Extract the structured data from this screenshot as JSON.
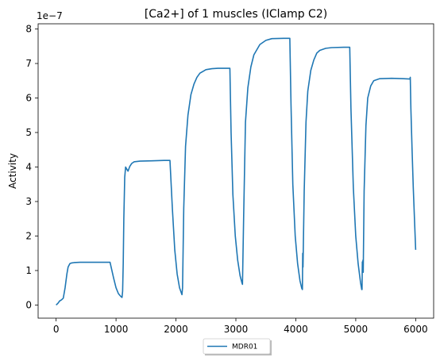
{
  "chart_data": {
    "type": "line",
    "title": "[Ca2+] of 1 muscles (IClamp C2)",
    "xlabel": "",
    "ylabel": "Activity",
    "offset_text": "1e−7",
    "xlim": [
      -300,
      6300
    ],
    "ylim": [
      -0.38,
      8.15
    ],
    "xticks": [
      0,
      1000,
      2000,
      3000,
      4000,
      5000,
      6000
    ],
    "xtick_labels": [
      "0",
      "1000",
      "2000",
      "3000",
      "4000",
      "5000",
      "6000"
    ],
    "yticks": [
      0,
      1,
      2,
      3,
      4,
      5,
      6,
      7,
      8
    ],
    "ytick_labels": [
      "0",
      "1",
      "2",
      "3",
      "4",
      "5",
      "6",
      "7",
      "8"
    ],
    "grid": false,
    "legend_position": "below-center",
    "series": [
      {
        "name": "MDR01",
        "color": "#1f77b4",
        "x": [
          0,
          30,
          60,
          90,
          120,
          150,
          180,
          200,
          230,
          260,
          300,
          400,
          600,
          800,
          900,
          960,
          1000,
          1040,
          1080,
          1100,
          1110,
          1120,
          1130,
          1145,
          1160,
          1175,
          1200,
          1230,
          1260,
          1300,
          1400,
          1600,
          1800,
          1900,
          1940,
          1980,
          2020,
          2060,
          2090,
          2100,
          2110,
          2130,
          2160,
          2200,
          2250,
          2300,
          2350,
          2400,
          2500,
          2600,
          2700,
          2900,
          2920,
          2950,
          2990,
          3030,
          3070,
          3100,
          3110,
          3130,
          3160,
          3200,
          3250,
          3300,
          3400,
          3500,
          3600,
          3800,
          3900,
          3920,
          3950,
          3990,
          4030,
          4070,
          4100,
          4110,
          4115,
          4120,
          4140,
          4170,
          4200,
          4250,
          4300,
          4350,
          4400,
          4500,
          4600,
          4800,
          4900,
          4920,
          4960,
          5000,
          5040,
          5080,
          5100,
          5105,
          5110,
          5115,
          5120,
          5125,
          5140,
          5170,
          5200,
          5250,
          5300,
          5400,
          5600,
          5800,
          5900,
          5905,
          5910,
          5920,
          5940,
          5960,
          5980,
          6000
        ],
        "values": [
          0,
          0.05,
          0.12,
          0.15,
          0.2,
          0.5,
          0.9,
          1.1,
          1.2,
          1.22,
          1.23,
          1.24,
          1.24,
          1.24,
          1.24,
          0.78,
          0.5,
          0.33,
          0.25,
          0.22,
          0.4,
          1.2,
          2.5,
          3.7,
          4.0,
          3.95,
          3.88,
          4.02,
          4.1,
          4.15,
          4.17,
          4.18,
          4.19,
          4.19,
          2.8,
          1.6,
          0.9,
          0.5,
          0.35,
          0.3,
          0.5,
          2.8,
          4.6,
          5.5,
          6.1,
          6.4,
          6.6,
          6.72,
          6.82,
          6.85,
          6.86,
          6.86,
          5.0,
          3.2,
          2.0,
          1.3,
          0.85,
          0.65,
          0.6,
          2.6,
          5.3,
          6.3,
          6.9,
          7.25,
          7.55,
          7.67,
          7.72,
          7.73,
          7.73,
          5.8,
          3.5,
          2.0,
          1.2,
          0.7,
          0.48,
          0.45,
          1.5,
          1.1,
          3.3,
          5.3,
          6.2,
          6.8,
          7.1,
          7.3,
          7.38,
          7.44,
          7.46,
          7.47,
          7.47,
          5.7,
          3.4,
          2.0,
          1.2,
          0.65,
          0.45,
          0.45,
          1.25,
          0.95,
          1.3,
          0.95,
          3.3,
          5.2,
          6.0,
          6.35,
          6.5,
          6.56,
          6.57,
          6.56,
          6.55,
          6.55,
          6.6,
          5.7,
          4.5,
          3.4,
          2.5,
          1.6
        ]
      }
    ]
  }
}
